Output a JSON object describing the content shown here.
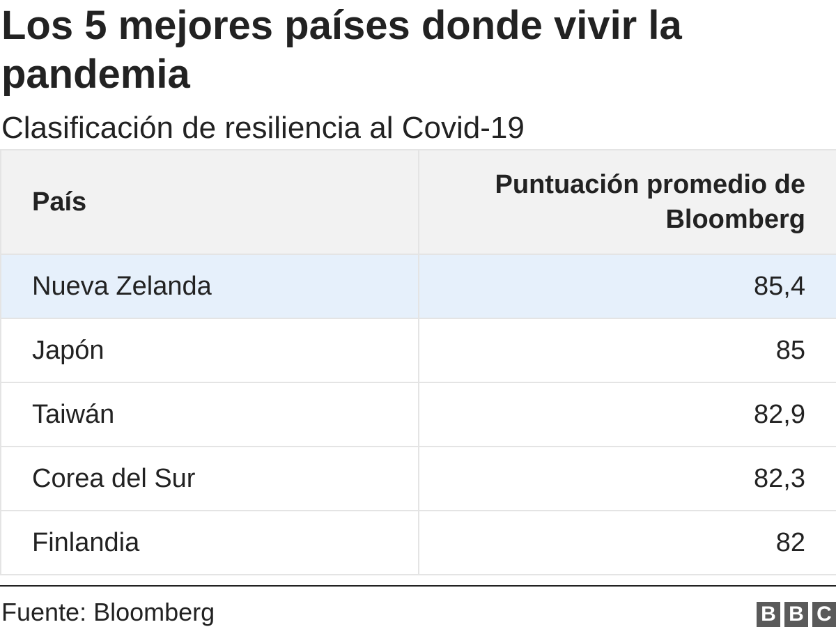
{
  "chart_data": {
    "type": "table",
    "title": "Los 5 mejores países donde vivir la pandemia",
    "subtitle": "Clasificación de resiliencia al Covid-19",
    "columns": [
      "País",
      "Puntuación promedio de Bloomberg"
    ],
    "rows": [
      {
        "country": "Nueva Zelanda",
        "score": "85,4",
        "highlighted": true
      },
      {
        "country": "Japón",
        "score": "85",
        "highlighted": false
      },
      {
        "country": "Taiwán",
        "score": "82,9",
        "highlighted": false
      },
      {
        "country": "Corea del Sur",
        "score": "82,3",
        "highlighted": false
      },
      {
        "country": "Finlandia",
        "score": "82",
        "highlighted": false
      }
    ],
    "source": "Fuente: Bloomberg"
  },
  "logo": {
    "letters": [
      "B",
      "B",
      "C"
    ]
  },
  "colors": {
    "text": "#222222",
    "header_background": "#f2f2f2",
    "highlight_row": "#e6f0fb",
    "grid_lines": "#e4e4e4",
    "logo_blocks": "#5a5a5a"
  }
}
